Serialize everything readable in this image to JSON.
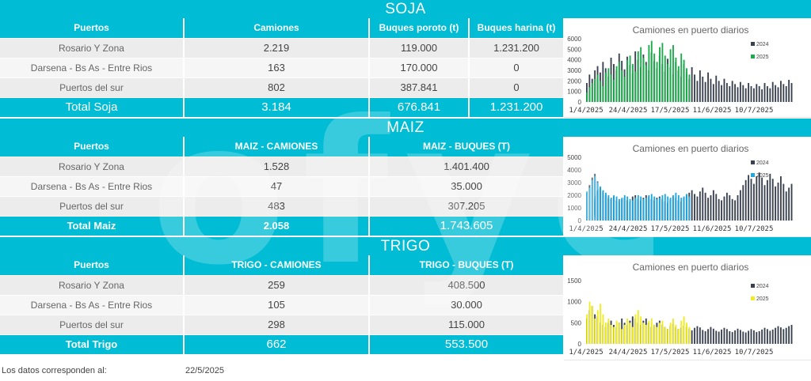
{
  "soja": {
    "title": "SOJA",
    "headers": [
      "Puertos",
      "Camiones",
      "Buques poroto (t)",
      "Buques harina (t)"
    ],
    "rows": [
      [
        "Rosario Y Zona",
        "2.219",
        "119.000",
        "1.231.200"
      ],
      [
        "Darsena - Bs As - Entre Rios",
        "163",
        "170.000",
        "0"
      ],
      [
        "Puertos del sur",
        "802",
        "387.841",
        "0"
      ]
    ],
    "total": [
      "Total Soja",
      "3.184",
      "676.841",
      "1.231.200"
    ]
  },
  "maiz": {
    "title": "MAIZ",
    "headers": [
      "Puertos",
      "MAIZ - CAMIONES",
      "MAIZ - BUQUES (T)"
    ],
    "rows": [
      [
        "Rosario Y Zona",
        "1.528",
        "1.401.400"
      ],
      [
        "Darsena - Bs As - Entre Rios",
        "47",
        "35.000"
      ],
      [
        "Puertos del sur",
        "483",
        "307.205"
      ]
    ],
    "total": [
      "Total Maiz",
      "2.058",
      "1.743.605"
    ]
  },
  "trigo": {
    "title": "TRIGO",
    "headers": [
      "Puertos",
      "TRIGO - CAMIONES",
      "TRIGO - BUQUES (T)"
    ],
    "rows": [
      [
        "Rosario Y Zona",
        "259",
        "408.500"
      ],
      [
        "Darsena - Bs As - Entre Rios",
        "105",
        "30.000"
      ],
      [
        "Puertos del sur",
        "298",
        "115.000"
      ]
    ],
    "total": [
      "Total Trigo",
      "662",
      "553.500"
    ]
  },
  "footer": {
    "label": "Los datos corresponden al:",
    "date": "22/5/2025"
  },
  "chart_data": [
    {
      "type": "bar",
      "title": "Camiones en puerto diarios",
      "x_tick_labels": [
        "1/4/2025",
        "24/4/2025",
        "17/5/2025",
        "11/6/2025",
        "10/7/2025"
      ],
      "ylim": [
        0,
        6000
      ],
      "y_ticks": [
        0,
        1000,
        2000,
        3000,
        4000,
        5000,
        6000
      ],
      "legend": [
        "2024",
        "2025"
      ],
      "legend_position": "top-right",
      "colors": {
        "2024": "#3a4150",
        "2025": "#1aab4a"
      },
      "series": [
        {
          "name": "2024",
          "values": [
            1800,
            2600,
            2200,
            3000,
            3400,
            2800,
            3800,
            3200,
            2400,
            4200,
            3600,
            3000,
            4600,
            3900,
            3100,
            4300,
            3500,
            2700,
            4800,
            4000,
            3300,
            4500,
            3800,
            3000,
            4700,
            3900,
            3200,
            4400,
            3600,
            2900,
            4100,
            3300,
            2600,
            3800,
            3000,
            2400,
            3600,
            2800,
            2200,
            3300,
            2600,
            2000,
            3000,
            2400,
            1900,
            2800,
            2200,
            1700,
            2500,
            2000,
            1600,
            2200,
            1800,
            1500,
            2000,
            1700,
            1400,
            1900,
            1600,
            1300,
            1800,
            1500,
            1300,
            1700,
            1500,
            1200,
            1800,
            1500,
            1300,
            1900,
            1600,
            1400,
            2000,
            1700,
            1500,
            2100,
            1800
          ]
        },
        {
          "name": "2025",
          "values": [
            900,
            1400,
            1800,
            2200,
            2600,
            2000,
            1500,
            2800,
            3200,
            2600,
            2100,
            3400,
            3800,
            3000,
            2400,
            4000,
            4400,
            3600,
            2900,
            4800,
            5200,
            4200,
            3500,
            5400,
            5800,
            4600,
            3800,
            5200,
            5600,
            4400,
            3600,
            5000,
            5400,
            4200,
            3400,
            4600,
            4000,
            3200,
            2600
          ]
        }
      ]
    },
    {
      "type": "bar",
      "title": "Camiones en puerto diarios",
      "x_tick_labels": [
        "1/4/2025",
        "24/4/2025",
        "17/5/2025",
        "11/6/2025",
        "10/7/2025"
      ],
      "ylim": [
        0,
        5000
      ],
      "y_ticks": [
        0,
        1000,
        2000,
        3000,
        4000,
        5000
      ],
      "legend": [
        "2024",
        "2025"
      ],
      "legend_position": "top-right",
      "colors": {
        "2024": "#3a4150",
        "2025": "#1ea7e1"
      },
      "series": [
        {
          "name": "2024",
          "values": [
            2200,
            2800,
            3400,
            3700,
            3100,
            2600,
            2300,
            2000,
            1800,
            1700,
            1900,
            1600,
            1500,
            1700,
            1800,
            1600,
            1500,
            1900,
            2000,
            1700,
            1600,
            1800,
            2000,
            1900,
            1700,
            1600,
            1800,
            1900,
            1700,
            1500,
            1400,
            1700,
            1900,
            1800,
            1600,
            1500,
            1800,
            2000,
            2200,
            2400,
            2100,
            1900,
            2300,
            2600,
            2200,
            1800,
            2000,
            2400,
            2100,
            1700,
            1600,
            1900,
            2200,
            2000,
            1700,
            1600,
            2000,
            2400,
            2800,
            3200,
            3600,
            3300,
            2900,
            3500,
            3800,
            3400,
            2800,
            3200,
            3700,
            3300,
            2700,
            3000,
            3500,
            2900,
            2300,
            2600,
            2900
          ]
        },
        {
          "name": "2025",
          "values": [
            2300,
            2600,
            3200,
            3500,
            3000,
            2700,
            2400,
            2200,
            2000,
            1800,
            2000,
            1900,
            1700,
            1800,
            2000,
            1900,
            1700,
            1600,
            1800,
            2000,
            1900,
            1700,
            1800,
            2000,
            2100,
            1900,
            1700,
            1800,
            2000,
            2100,
            1900,
            1800,
            2000,
            2200,
            2000,
            1800,
            1900,
            2100,
            1900
          ]
        }
      ]
    },
    {
      "type": "bar",
      "title": "Camiones en puerto diarios",
      "x_tick_labels": [
        "1/4/2025",
        "24/4/2025",
        "17/5/2025",
        "11/6/2025",
        "10/7/2025"
      ],
      "ylim": [
        0,
        1500
      ],
      "y_ticks": [
        0,
        500,
        1000,
        1500
      ],
      "legend": [
        "2024",
        "2025"
      ],
      "legend_position": "top-right",
      "colors": {
        "2024": "#3a4150",
        "2025": "#f2ec1b"
      },
      "series": [
        {
          "name": "2024",
          "values": [
            600,
            800,
            900,
            700,
            650,
            500,
            450,
            400,
            500,
            550,
            450,
            400,
            500,
            600,
            500,
            450,
            550,
            650,
            600,
            500,
            450,
            550,
            600,
            500,
            400,
            450,
            500,
            550,
            450,
            400,
            350,
            420,
            480,
            400,
            350,
            380,
            430,
            400,
            350,
            320,
            380,
            420,
            390,
            330,
            300,
            350,
            400,
            360,
            310,
            290,
            340,
            380,
            350,
            300,
            280,
            320,
            360,
            330,
            290,
            270,
            310,
            350,
            320,
            280,
            300,
            340,
            380,
            350,
            310,
            340,
            380,
            420,
            390,
            350,
            380,
            420,
            450
          ]
        },
        {
          "name": "2025",
          "values": [
            700,
            1000,
            900,
            600,
            800,
            950,
            700,
            500,
            600,
            450,
            400,
            550,
            500,
            350,
            450,
            600,
            500,
            400,
            700,
            800,
            650,
            500,
            450,
            550,
            600,
            450,
            400,
            500,
            550,
            400,
            350,
            500,
            600,
            450,
            350,
            550,
            650,
            500,
            400
          ]
        }
      ]
    }
  ]
}
